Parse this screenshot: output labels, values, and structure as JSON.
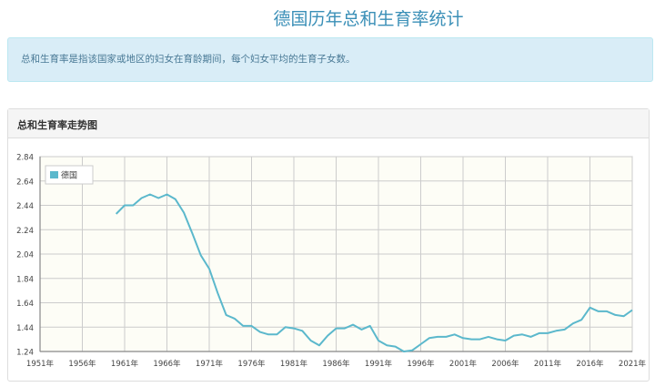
{
  "page": {
    "title": "德国历年总和生育率统计",
    "description": "总和生育率是指该国家或地区的妇女在育龄期间，每个妇女平均的生育子女数。"
  },
  "panel": {
    "heading": "总和生育率走势图"
  },
  "colors": {
    "line": "#5bb8cc",
    "plot_bg": "#fdfdf6",
    "grid": "#cccccc",
    "title": "#3a8fb7"
  },
  "chart_data": {
    "type": "line",
    "x_ticks": [
      "1951年",
      "1956年",
      "1961年",
      "1966年",
      "1971年",
      "1976年",
      "1981年",
      "1986年",
      "1991年",
      "1996年",
      "2001年",
      "2006年",
      "2011年",
      "2016年",
      "2021年"
    ],
    "y_ticks": [
      "1.24",
      "1.44",
      "1.64",
      "1.84",
      "2.04",
      "2.24",
      "2.44",
      "2.64",
      "2.84"
    ],
    "xlim": [
      1951,
      2021
    ],
    "ylim": [
      1.24,
      2.84
    ],
    "legend_position": "top-left",
    "grid": true,
    "series": [
      {
        "name": "德国",
        "x": [
          1960,
          1961,
          1962,
          1963,
          1964,
          1965,
          1966,
          1967,
          1968,
          1969,
          1970,
          1971,
          1972,
          1973,
          1974,
          1975,
          1976,
          1977,
          1978,
          1979,
          1980,
          1981,
          1982,
          1983,
          1984,
          1985,
          1986,
          1987,
          1988,
          1989,
          1990,
          1991,
          1992,
          1993,
          1994,
          1995,
          1996,
          1997,
          1998,
          1999,
          2000,
          2001,
          2002,
          2003,
          2004,
          2005,
          2006,
          2007,
          2008,
          2009,
          2010,
          2011,
          2012,
          2013,
          2014,
          2015,
          2016,
          2017,
          2018,
          2019,
          2020,
          2021
        ],
        "values": [
          2.37,
          2.44,
          2.44,
          2.5,
          2.53,
          2.5,
          2.53,
          2.49,
          2.38,
          2.21,
          2.03,
          1.92,
          1.72,
          1.54,
          1.51,
          1.45,
          1.45,
          1.4,
          1.38,
          1.38,
          1.44,
          1.43,
          1.41,
          1.33,
          1.29,
          1.37,
          1.43,
          1.43,
          1.46,
          1.42,
          1.45,
          1.33,
          1.29,
          1.28,
          1.24,
          1.25,
          1.3,
          1.35,
          1.36,
          1.36,
          1.38,
          1.35,
          1.34,
          1.34,
          1.36,
          1.34,
          1.33,
          1.37,
          1.38,
          1.36,
          1.39,
          1.39,
          1.41,
          1.42,
          1.47,
          1.5,
          1.6,
          1.57,
          1.57,
          1.54,
          1.53,
          1.58
        ]
      }
    ]
  }
}
